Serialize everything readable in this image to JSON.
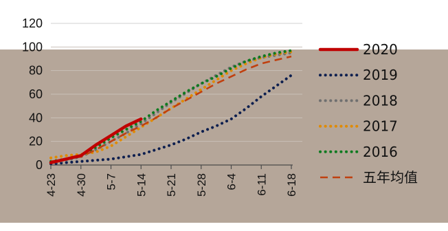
{
  "chart_data": {
    "type": "line",
    "title": "",
    "xlabel": "",
    "ylabel": "",
    "ylim": [
      0,
      120
    ],
    "y_ticks": [
      0,
      20,
      40,
      60,
      80,
      100,
      120
    ],
    "categories": [
      "4-23",
      "4-30",
      "5-7",
      "5-14",
      "5-21",
      "5-28",
      "6-4",
      "6-11",
      "6-18"
    ],
    "grid": "horizontal",
    "legend_position": "right",
    "background_color": "#b5a699",
    "axis_color": "#4a4a4a",
    "series": [
      {
        "name": "2020",
        "style": "solid",
        "color": "#c00000",
        "x": [
          0,
          0.5,
          1,
          1.5,
          2,
          2.5,
          3
        ],
        "y": [
          2,
          5,
          8,
          17,
          25,
          33,
          39
        ]
      },
      {
        "name": "2019",
        "style": "dots",
        "color": "#0d1f4f",
        "x": [
          0,
          0.5,
          1,
          1.5,
          2,
          2.5,
          3,
          3.5,
          4,
          4.5,
          5,
          5.5,
          6,
          6.5,
          7,
          7.5,
          8
        ],
        "y": [
          1,
          2,
          3,
          4,
          5,
          7,
          9,
          13,
          17,
          22,
          28,
          33,
          39,
          48,
          58,
          67,
          76
        ]
      },
      {
        "name": "2018",
        "style": "dots",
        "color": "#6f6f6f",
        "x": [
          0,
          0.5,
          1,
          1.5,
          2,
          2.5,
          3,
          3.5,
          4,
          4.5,
          5,
          5.5,
          6,
          6.5,
          7,
          7.5,
          8
        ],
        "y": [
          2,
          4,
          7,
          13,
          20,
          27,
          35,
          44,
          53,
          61,
          69,
          76,
          83,
          88,
          91,
          93,
          95
        ]
      },
      {
        "name": "2017",
        "style": "dots",
        "color": "#e08a00",
        "x": [
          0,
          0.5,
          1,
          1.5,
          2,
          2.5,
          3,
          3.5,
          4,
          4.5,
          5,
          5.5,
          6,
          6.5,
          7,
          7.5,
          8
        ],
        "y": [
          6,
          8,
          9,
          11,
          16,
          24,
          32,
          40,
          48,
          56,
          64,
          72,
          80,
          86,
          91,
          94,
          96
        ]
      },
      {
        "name": "2016",
        "style": "dots",
        "color": "#0d7a1f",
        "x": [
          0,
          0.5,
          1,
          1.5,
          2,
          2.5,
          3,
          3.5,
          4,
          4.5,
          5,
          5.5,
          6,
          6.5,
          7,
          7.5,
          8
        ],
        "y": [
          3,
          5,
          8,
          15,
          23,
          30,
          37,
          46,
          54,
          62,
          69,
          75,
          82,
          88,
          92,
          95,
          97
        ]
      },
      {
        "name": "五年均值",
        "style": "dashed",
        "color": "#c0400f",
        "x": [
          0,
          0.5,
          1,
          1.5,
          2,
          2.5,
          3,
          3.5,
          4,
          4.5,
          5,
          5.5,
          6,
          6.5,
          7,
          7.5,
          8
        ],
        "y": [
          3,
          5,
          7,
          13,
          20,
          27,
          33,
          40,
          48,
          55,
          62,
          69,
          75,
          81,
          86,
          89,
          92
        ]
      }
    ]
  }
}
